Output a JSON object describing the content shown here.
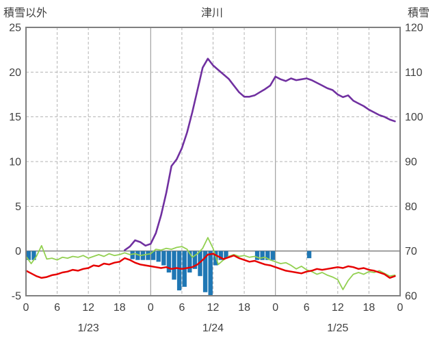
{
  "title": "津川",
  "left_axis_title": "積雪以外",
  "right_axis_title": "積雪",
  "colors": {
    "snow_depth_line": "#7030a0",
    "red_line": "#e60000",
    "green_line": "#92d050",
    "blue_bars": "#1f77b4",
    "grid_dashed": "#b3b3b3",
    "grid_day": "#a0a0a0",
    "zero_line": "#808080",
    "border": "#7f7f7f",
    "text": "#3f3f3f"
  },
  "chart_data": {
    "type": "line",
    "x_description": "hourly values, index 0 = 1/23 00:00 through index 71 = 1/25 23:00; plot spans 72 hours",
    "left_axis": {
      "min": -5,
      "max": 25,
      "tick_labels": [
        "25",
        "20",
        "15",
        "10",
        "5",
        "0",
        "-5"
      ],
      "tick_values": [
        25,
        20,
        15,
        10,
        5,
        0,
        -5
      ]
    },
    "right_axis": {
      "min": 60,
      "max": 120,
      "tick_labels": [
        "120",
        "110",
        "100",
        "90",
        "80",
        "70",
        "60"
      ],
      "tick_values": [
        120,
        110,
        100,
        90,
        80,
        70,
        60
      ]
    },
    "x_tick_hours": [
      0,
      6,
      12,
      18,
      24,
      30,
      36,
      42,
      48,
      54,
      60,
      66,
      72
    ],
    "x_tick_labels": [
      "0",
      "6",
      "12",
      "18",
      "0",
      "6",
      "12",
      "18",
      "0",
      "6",
      "12",
      "18",
      "0"
    ],
    "date_labels": [
      {
        "hour": 12,
        "label": "1/23"
      },
      {
        "hour": 36,
        "label": "1/24"
      },
      {
        "hour": 60,
        "label": "1/25"
      }
    ],
    "grid": {
      "vertical_dashed_hours": [
        6,
        12,
        18,
        30,
        36,
        42,
        54,
        60,
        66
      ],
      "vertical_solid_hours": [
        24,
        48
      ],
      "horizontal_dashed_left_values": [
        20,
        15,
        10,
        5
      ],
      "zero_line_left_value": 0
    },
    "series": [
      {
        "id": "blue-bars",
        "style": "bar",
        "axis": "left",
        "color_key": "blue_bars",
        "values": [
          -1.0,
          -1.0,
          0,
          0,
          0,
          0,
          0,
          0,
          0,
          0,
          0,
          0,
          0,
          0,
          0,
          0,
          0,
          0,
          0,
          0,
          -0.9,
          -1.0,
          -1.0,
          -1.0,
          -1.0,
          -1.2,
          -1.6,
          -2.4,
          -3.2,
          -4.4,
          -4.0,
          -2.4,
          -2.0,
          -2.8,
          -4.6,
          -5.0,
          -1.6,
          -1.0,
          -0.8,
          0,
          0,
          0,
          0,
          0,
          -1.0,
          -1.0,
          -1.0,
          -1.0,
          0,
          0,
          0,
          0,
          0,
          0,
          -0.8,
          0,
          0,
          0,
          0,
          0,
          0,
          0,
          0,
          0,
          0,
          0,
          0,
          0,
          0,
          0,
          0,
          0
        ]
      },
      {
        "id": "green-line",
        "style": "line",
        "axis": "left",
        "color_key": "green_line",
        "width": 1.8,
        "values": [
          -0.6,
          -1.4,
          -0.6,
          0.6,
          -0.9,
          -0.8,
          -1.0,
          -0.7,
          -0.8,
          -0.6,
          -0.7,
          -0.5,
          -0.8,
          -0.6,
          -0.4,
          -0.6,
          -0.3,
          -0.5,
          -0.4,
          -0.2,
          -0.4,
          -0.3,
          -0.5,
          -0.4,
          -0.3,
          0.2,
          0.1,
          0.3,
          0.2,
          0.4,
          0.5,
          0.2,
          -0.7,
          -0.3,
          0.3,
          1.5,
          0.3,
          -1.5,
          -1.0,
          -0.6,
          -0.4,
          -0.6,
          -0.5,
          -0.7,
          -0.6,
          -0.8,
          -0.7,
          -1.0,
          -1.2,
          -1.4,
          -1.3,
          -1.6,
          -2.0,
          -1.7,
          -2.1,
          -2.3,
          -2.6,
          -2.4,
          -2.7,
          -2.9,
          -3.2,
          -4.3,
          -3.3,
          -2.6,
          -2.4,
          -2.6,
          -2.3,
          -2.4,
          -2.2,
          -2.5,
          -2.8,
          -2.7
        ]
      },
      {
        "id": "red-line",
        "style": "line",
        "axis": "left",
        "color_key": "red_line",
        "width": 2.5,
        "values": [
          -2.2,
          -2.5,
          -2.8,
          -3.0,
          -2.9,
          -2.7,
          -2.6,
          -2.4,
          -2.3,
          -2.1,
          -2.2,
          -2.0,
          -1.9,
          -1.6,
          -1.7,
          -1.4,
          -1.5,
          -1.3,
          -1.2,
          -0.8,
          -1.0,
          -1.3,
          -1.5,
          -1.6,
          -1.7,
          -1.8,
          -1.9,
          -1.8,
          -2.0,
          -1.9,
          -2.0,
          -1.9,
          -1.8,
          -1.5,
          -1.0,
          -0.4,
          -0.3,
          -0.6,
          -0.9,
          -0.7,
          -0.5,
          -0.8,
          -1.0,
          -1.2,
          -1.1,
          -1.3,
          -1.5,
          -1.6,
          -1.8,
          -2.0,
          -2.2,
          -2.3,
          -2.4,
          -2.5,
          -2.3,
          -2.2,
          -2.0,
          -2.1,
          -2.0,
          -1.9,
          -1.8,
          -1.9,
          -1.7,
          -1.8,
          -2.0,
          -1.9,
          -2.1,
          -2.2,
          -2.4,
          -2.6,
          -3.0,
          -2.8
        ]
      },
      {
        "id": "snow-depth-line",
        "style": "line",
        "axis": "right",
        "color_key": "snow_depth_line",
        "width": 2.6,
        "values": [
          null,
          null,
          null,
          null,
          null,
          null,
          null,
          null,
          null,
          null,
          null,
          null,
          null,
          null,
          null,
          null,
          null,
          null,
          null,
          70.2,
          71.0,
          72.4,
          72.0,
          71.2,
          71.6,
          74.0,
          78.0,
          83.0,
          89.0,
          90.5,
          93.0,
          96.5,
          101.0,
          106.0,
          111.0,
          113.0,
          111.5,
          110.5,
          109.5,
          108.5,
          107.0,
          105.5,
          104.5,
          104.5,
          104.8,
          105.5,
          106.2,
          107.0,
          109.0,
          108.4,
          108.0,
          108.6,
          108.2,
          108.4,
          108.6,
          108.2,
          107.6,
          107.0,
          106.4,
          106.0,
          105.0,
          104.4,
          104.8,
          103.6,
          103.0,
          102.4,
          101.6,
          101.0,
          100.4,
          100.0,
          99.4,
          99.0
        ]
      }
    ]
  }
}
